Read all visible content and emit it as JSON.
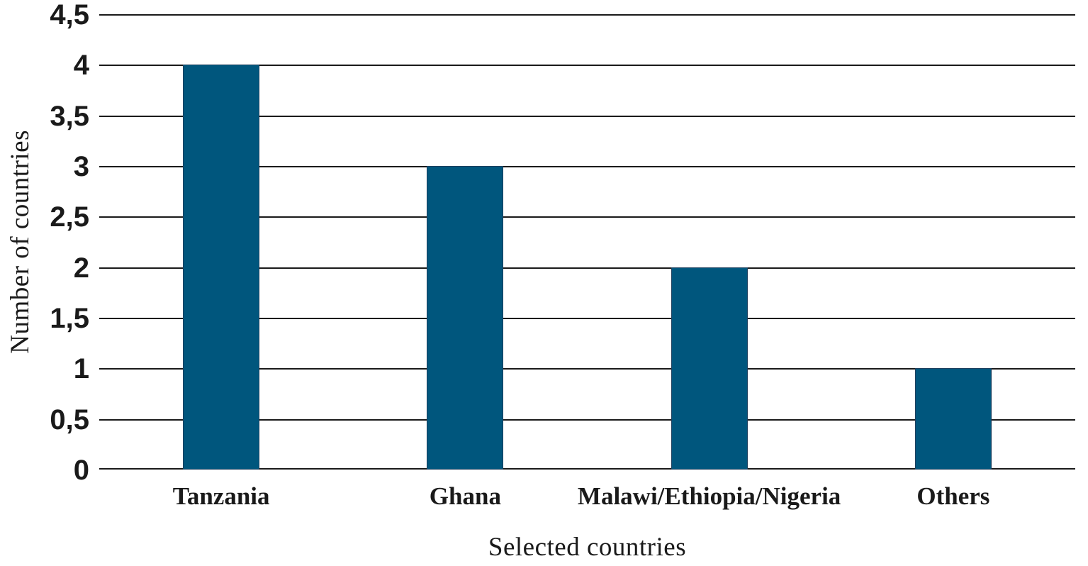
{
  "chart_data": {
    "type": "bar",
    "title": "",
    "categories": [
      "Tanzania",
      "Ghana",
      "Malawi/Ethiopia/Nigeria",
      "Others"
    ],
    "values": [
      4,
      3,
      2,
      1
    ],
    "xlabel": "Selected countries",
    "ylabel": "Number of countries",
    "ylim": [
      0,
      4.5
    ],
    "ytick_step": 0.5,
    "yticks": [
      {
        "value": 0,
        "label": "0"
      },
      {
        "value": 0.5,
        "label": "0,5"
      },
      {
        "value": 1,
        "label": "1"
      },
      {
        "value": 1.5,
        "label": "1,5"
      },
      {
        "value": 2,
        "label": "2"
      },
      {
        "value": 2.5,
        "label": "2,5"
      },
      {
        "value": 3,
        "label": "3"
      },
      {
        "value": 3.5,
        "label": "3,5"
      },
      {
        "value": 4,
        "label": "4"
      },
      {
        "value": 4.5,
        "label": "4,5"
      }
    ],
    "grid": "horizontal",
    "legend": "none",
    "colors": {
      "bar": "#00567d",
      "bar_edge": "#1c3f5e",
      "gridline": "#1a1a1a",
      "baseline": "#1a1a1a",
      "text": "#1a1a1a",
      "background": "#ffffff"
    }
  }
}
